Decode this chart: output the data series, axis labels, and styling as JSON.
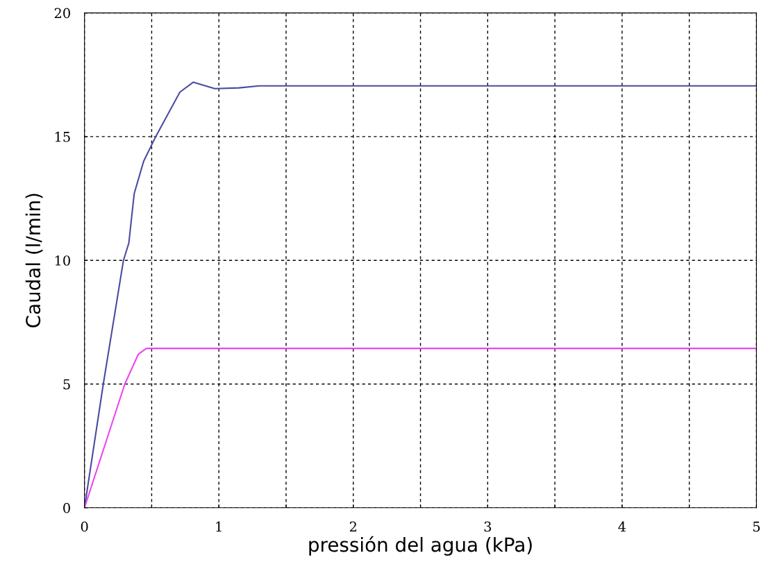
{
  "chart_data": {
    "type": "line",
    "xlabel": "pressión del agua (kPa)",
    "ylabel": "Caudal (l/min)",
    "xlim": [
      0,
      5
    ],
    "ylim": [
      0,
      20
    ],
    "xticks": [
      0,
      {
        "value": 0.5,
        "label": null
      },
      1,
      {
        "value": 1.5,
        "label": null
      },
      2,
      {
        "value": 2.5,
        "label": null
      },
      3,
      {
        "value": 3.5,
        "label": null
      },
      4,
      {
        "value": 4.5,
        "label": null
      },
      5
    ],
    "yticks": [
      0,
      5,
      10,
      15,
      20
    ],
    "grid": true,
    "line_style": "solid",
    "series": [
      {
        "color": "#4a4aa0",
        "x": [
          0,
          0.14,
          0.29,
          0.33,
          0.37,
          0.44,
          0.53,
          0.71,
          0.81,
          0.97,
          1.15,
          1.3,
          5
        ],
        "values": [
          0,
          5,
          10,
          10.7,
          12.7,
          14.0,
          15,
          16.8,
          17.2,
          16.94,
          16.97,
          17.05,
          17.05
        ]
      },
      {
        "color": "#ee44ee",
        "x": [
          0,
          0.3,
          0.4,
          0.46,
          5
        ],
        "values": [
          0,
          5,
          6.2,
          6.44,
          6.44
        ]
      }
    ]
  }
}
